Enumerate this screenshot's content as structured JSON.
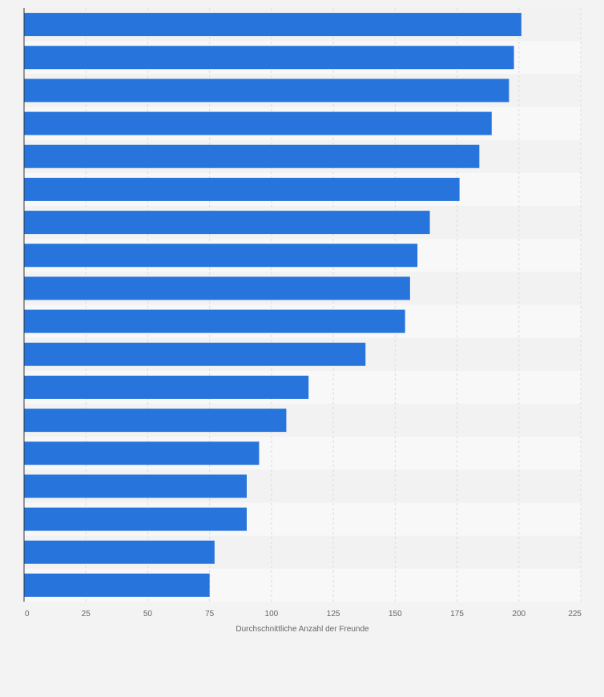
{
  "chart_data": {
    "type": "bar",
    "orientation": "horizontal",
    "categories": [
      "",
      "",
      "",
      "",
      "",
      "",
      "",
      "",
      "",
      "",
      "",
      "",
      "",
      "",
      "",
      "",
      "",
      ""
    ],
    "values": [
      201,
      198,
      196,
      189,
      184,
      176,
      164,
      159,
      156,
      154,
      138,
      115,
      106,
      95,
      90,
      90,
      77,
      75
    ],
    "xlabel": "Durchschnittliche Anzahl der Freunde",
    "ylabel": "",
    "xlim": [
      0,
      225
    ],
    "xticks": [
      0,
      25,
      50,
      75,
      100,
      125,
      150,
      175,
      200,
      225
    ],
    "grid": true,
    "legend": "none",
    "colors": {
      "bar": "#2775dc",
      "band_light": "#f8f8f8",
      "band_dark": "#f2f2f2",
      "grid": "#dcdcdc",
      "axis": "#333333",
      "background": "#f3f3f3"
    }
  }
}
